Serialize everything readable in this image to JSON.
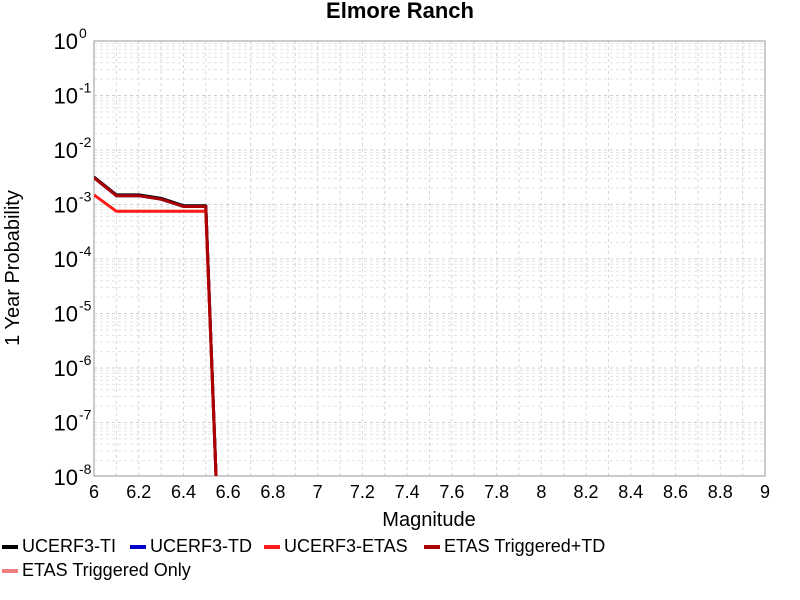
{
  "chart_data": {
    "type": "line",
    "title": "Elmore Ranch",
    "xlabel": "Magnitude",
    "ylabel": "1 Year Probability",
    "xlim": [
      6,
      9
    ],
    "ylim_exponent": [
      -8.2,
      0
    ],
    "yscale": "log",
    "x_ticks": [
      "6",
      "6.2",
      "6.4",
      "6.6",
      "6.8",
      "7",
      "7.2",
      "7.4",
      "7.6",
      "7.8",
      "8",
      "8.2",
      "8.4",
      "8.6",
      "8.8",
      "9"
    ],
    "y_ticks": [
      {
        "base": "10",
        "exp": "0"
      },
      {
        "base": "10",
        "exp": "-1"
      },
      {
        "base": "10",
        "exp": "-2"
      },
      {
        "base": "10",
        "exp": "-3"
      },
      {
        "base": "10",
        "exp": "-4"
      },
      {
        "base": "10",
        "exp": "-5"
      },
      {
        "base": "10",
        "exp": "-6"
      },
      {
        "base": "10",
        "exp": "-7"
      },
      {
        "base": "10",
        "exp": "-8"
      }
    ],
    "grid": true,
    "legend_position": "bottom",
    "series": [
      {
        "name": "UCERF3-TI",
        "color": "#000000",
        "x": [
          6.0,
          6.1,
          6.2,
          6.3,
          6.4,
          6.5,
          6.55
        ],
        "y": [
          0.0032,
          0.0015,
          0.0015,
          0.0013,
          0.00095,
          0.00095,
          1e-09
        ]
      },
      {
        "name": "UCERF3-TD",
        "color": "#0000cc",
        "x": [
          6.0,
          6.1,
          6.2,
          6.3,
          6.4,
          6.5,
          6.55
        ],
        "y": [
          0.0031,
          0.00145,
          0.00145,
          0.00125,
          0.00092,
          0.00092,
          1e-09
        ]
      },
      {
        "name": "UCERF3-ETAS",
        "color": "#ff1a1a",
        "x": [
          6.0,
          6.1,
          6.2,
          6.3,
          6.4,
          6.5,
          6.55
        ],
        "y": [
          0.0015,
          0.00075,
          0.00075,
          0.00075,
          0.00075,
          0.00075,
          1e-09
        ]
      },
      {
        "name": "ETAS Triggered+TD",
        "color": "#aa0000",
        "x": [
          6.0,
          6.1,
          6.2,
          6.3,
          6.4,
          6.5,
          6.55
        ],
        "y": [
          0.0031,
          0.00145,
          0.00145,
          0.00125,
          0.00092,
          0.00092,
          1e-09
        ]
      },
      {
        "name": "ETAS Triggered Only",
        "color": "#f08080",
        "x": [],
        "y": []
      }
    ]
  }
}
